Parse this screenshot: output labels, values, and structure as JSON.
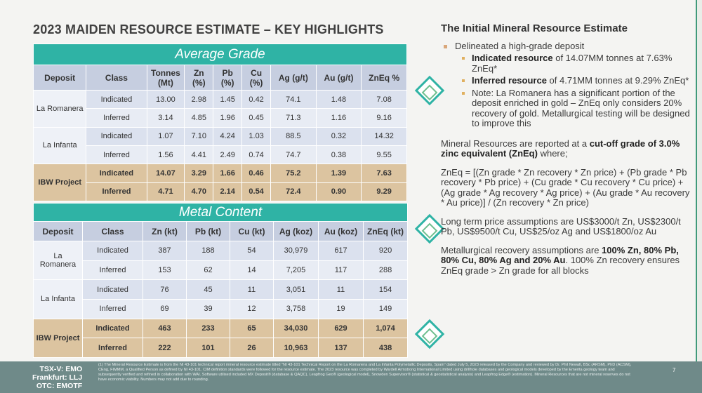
{
  "title": "2023 MAIDEN RESOURCE ESTIMATE – KEY HIGHLIGHTS",
  "tables": [
    {
      "heading": "Average Grade",
      "columns": [
        "Deposit",
        "Class",
        "Tonnes (Mt)",
        "Zn (%)",
        "Pb (%)",
        "Cu (%)",
        "Ag (g/t)",
        "Au (g/t)",
        "ZnEq %"
      ],
      "groups": [
        {
          "deposit": "La Romanera",
          "rows": [
            [
              "Indicated",
              "13.00",
              "2.98",
              "1.45",
              "0.42",
              "74.1",
              "1.48",
              "7.08"
            ],
            [
              "Inferred",
              "3.14",
              "4.85",
              "1.96",
              "0.45",
              "71.3",
              "1.16",
              "9.16"
            ]
          ]
        },
        {
          "deposit": "La Infanta",
          "rows": [
            [
              "Indicated",
              "1.07",
              "7.10",
              "4.24",
              "1.03",
              "88.5",
              "0.32",
              "14.32"
            ],
            [
              "Inferred",
              "1.56",
              "4.41",
              "2.49",
              "0.74",
              "74.7",
              "0.38",
              "9.55"
            ]
          ]
        },
        {
          "deposit": "IBW Project",
          "rows": [
            [
              "Indicated",
              "14.07",
              "3.29",
              "1.66",
              "0.46",
              "75.2",
              "1.39",
              "7.63"
            ],
            [
              "Inferred",
              "4.71",
              "4.70",
              "2.14",
              "0.54",
              "72.4",
              "0.90",
              "9.29"
            ]
          ]
        }
      ]
    },
    {
      "heading": "Metal Content",
      "columns": [
        "Deposit",
        "Class",
        "Zn (kt)",
        "Pb (kt)",
        "Cu (kt)",
        "Ag (koz)",
        "Au (koz)",
        "ZnEq (kt)"
      ],
      "groups": [
        {
          "deposit": "La Romanera",
          "rows": [
            [
              "Indicated",
              "387",
              "188",
              "54",
              "30,979",
              "617",
              "920"
            ],
            [
              "Inferred",
              "153",
              "62",
              "14",
              "7,205",
              "117",
              "288"
            ]
          ]
        },
        {
          "deposit": "La Infanta",
          "rows": [
            [
              "Indicated",
              "76",
              "45",
              "11",
              "3,051",
              "11",
              "154"
            ],
            [
              "Inferred",
              "69",
              "39",
              "12",
              "3,758",
              "19",
              "149"
            ]
          ]
        },
        {
          "deposit": "IBW Project",
          "rows": [
            [
              "Indicated",
              "463",
              "233",
              "65",
              "34,030",
              "629",
              "1,074"
            ],
            [
              "Inferred",
              "222",
              "101",
              "26",
              "10,963",
              "137",
              "438"
            ]
          ]
        }
      ]
    }
  ],
  "right": {
    "heading": "The Initial Mineral Resource Estimate",
    "bullet": "Delineated a high-grade deposit",
    "subbullets": [
      [
        {
          "text": "Indicated resource",
          "bold": true
        },
        {
          "text": " of 14.07MM tonnes at 7.63% ZnEq*"
        }
      ],
      [
        {
          "text": "Inferred resource",
          "bold": true
        },
        {
          "text": " of 4.71MM tonnes at 9.29% ZnEq*"
        }
      ],
      [
        {
          "text": "Note:  La Romanera has a significant portion of the deposit enriched in gold – ZnEq only considers 20% recovery of gold. Metallurgical testing will be designed to improve this"
        }
      ]
    ],
    "paragraphs": [
      [
        {
          "text": "Mineral Resources are reported at a "
        },
        {
          "text": "cut-off grade of 3.0% zinc equivalent (ZnEq)",
          "bold": true
        },
        {
          "text": " where;"
        }
      ],
      [
        {
          "text": "ZnEq = [(Zn grade * Zn recovery * Zn price) + (Pb grade * Pb recovery * Pb price) + (Cu grade * Cu recovery * Cu price) + (Ag grade * Ag recovery * Ag price) + (Au grade * Au recovery * Au price)] / (Zn recovery * Zn price)"
        }
      ],
      [
        {
          "text": "Long term price assumptions are US$3000/t Zn, US$2300/t Pb, US$9500/t Cu, US$25/oz Ag and US$1800/oz Au"
        }
      ],
      [
        {
          "text": "Metallurgical recovery assumptions are "
        },
        {
          "text": "100% Zn, 80% Pb, 80% Cu, 80% Ag and 20% Au",
          "bold": true
        },
        {
          "text": ". 100% Zn recovery ensures ZnEq grade > Zn grade for all blocks"
        }
      ]
    ]
  },
  "footer": {
    "tickers": [
      "TSX-V: EMO",
      "Frankfurt: LLJ",
      "OTC: EMOTF"
    ],
    "note": "(1) The Mineral Resource Estimate is from the NI 43-101 technical report mineral resource estimate titled \"NI 43-101 Technical Report on the La Romanera and La Infanta Polymetallic Deposits, Spain\" dated July 5, 2023 released by the Company and reviewed by Dr. Phil Newall, BSc (ARSM), PhD (ACSM), CEng, FIMMM, a Qualified Person as defined by NI 43-101. CIM definition standards were followed for the resource estimate. The 2023 resource was completed by Wardell Armstrong International Limited using drillhole databases and geological models developed by the Emerita geology team and subsequently verified and refined in collaboration with WAI. Software utilised included MX Deposit® (database & QAQC), Leapfrog Geo® (geological model), Snowden Supervisor® (statistical & geostatistical analysis) and Leapfrog Edge® (estimation). Mineral Resources that are not mineral reserves do not have economic viability. Numbers may not add due to rounding.",
    "page": "7"
  }
}
